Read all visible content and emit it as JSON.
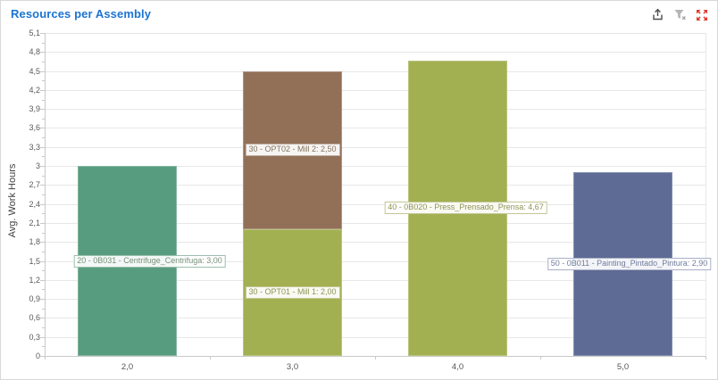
{
  "panel": {
    "title": "Resources per Assembly",
    "toolbar": {
      "export_tooltip": "Export",
      "clear_filter_tooltip": "Clear filter",
      "expand_tooltip": "Expand"
    },
    "colors": {
      "title": "#1b74d1",
      "toolbar_icon": "#4d4d4d",
      "filter_icon": "#b5b5b5",
      "expand_icon": "#e03b2e",
      "gridline": "#e7e7e7",
      "axis": "#c9c9c9"
    }
  },
  "chart_data": {
    "type": "bar",
    "stacked": true,
    "title": "Resources per Assembly",
    "xlabel": "",
    "ylabel": "Avg. Work Hours",
    "ylim": [
      0,
      5.1
    ],
    "grid": true,
    "legend": "none",
    "categories": [
      "2,0",
      "3,0",
      "4,0",
      "5,0"
    ],
    "yticks": [
      {
        "label": "5,1",
        "value": 5.1
      },
      {
        "label": "4,8",
        "value": 4.8
      },
      {
        "label": "4,5",
        "value": 4.5
      },
      {
        "label": "4,2",
        "value": 4.2
      },
      {
        "label": "3,9",
        "value": 3.9
      },
      {
        "label": "3,6",
        "value": 3.6
      },
      {
        "label": "3,3",
        "value": 3.3
      },
      {
        "label": "3",
        "value": 3
      },
      {
        "label": "2,7",
        "value": 2.7
      },
      {
        "label": "2,4",
        "value": 2.4
      },
      {
        "label": "2,1",
        "value": 2.1
      },
      {
        "label": "1,8",
        "value": 1.8
      },
      {
        "label": "1,5",
        "value": 1.5
      },
      {
        "label": "1,2",
        "value": 1.2
      },
      {
        "label": "0,9",
        "value": 0.9
      },
      {
        "label": "0,6",
        "value": 0.6
      },
      {
        "label": "0,3",
        "value": 0.3
      },
      {
        "label": "0",
        "value": 0
      }
    ],
    "bars": [
      {
        "category": "2,0",
        "segments": [
          {
            "name": "20 - 0B031 - Centrifuge_Centrifuga",
            "value": 3.0,
            "label": "20 - 0B031 - Centrifuge_Centrifuga: 3,00",
            "color": "#589c7f",
            "label_color": "#78917b",
            "label_border": "#9dbfae"
          }
        ]
      },
      {
        "category": "3,0",
        "segments": [
          {
            "name": "30 - OPT01 - Mill 1",
            "value": 2.0,
            "label": "30 - OPT01 - Mill 1: 2,00",
            "color": "#a3b052",
            "label_color": "#8f9353",
            "label_border": "#c3c693"
          },
          {
            "name": "30 - OPT02 - Mill 2",
            "value": 2.5,
            "label": "30 - OPT02 - Mill 2: 2,50",
            "color": "#927058",
            "label_color": "#83745f",
            "label_border": "#bfae9f"
          }
        ]
      },
      {
        "category": "4,0",
        "segments": [
          {
            "name": "40 - 0B020 - Press_Prensado_Prensa",
            "value": 4.67,
            "label": "40 - 0B020 - Press_Prensado_Prensa: 4,67",
            "color": "#a3b052",
            "label_color": "#8f9353",
            "label_border": "#c3c693"
          }
        ]
      },
      {
        "category": "5,0",
        "segments": [
          {
            "name": "50 - 0B011 - Painting_Pintado_Pintura",
            "value": 2.9,
            "label": "50 - 0B011 - Painting_Pintado_Pintura: 2,90",
            "color": "#5e6b94",
            "label_color": "#707c9d",
            "label_border": "#a9b0c8"
          }
        ]
      }
    ]
  }
}
